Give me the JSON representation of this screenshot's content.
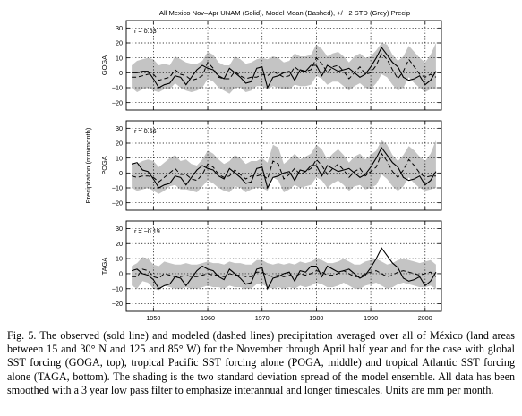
{
  "figure": {
    "title": "All Mexico Nov–Apr UNAM (Solid), Model Mean (Dashed), +/− 2 STD (Grey) Precip",
    "shared_ylabel": "Precipitation (mm/month)",
    "x_ticks": [
      1950,
      1960,
      1970,
      1980,
      1990,
      2000
    ],
    "colors": {
      "observed": "#000000",
      "model": "#000000",
      "spread": "#c4c4c4"
    }
  },
  "caption": {
    "text": "Fig. 5. The observed (sold line) and modeled (dashed lines) precipitation averaged over all of México (land areas between 15 and 30° N and 125 and 85° W) for the November through April half year and for the case with global SST forcing (GOGA, top), tropical Pacific SST forcing alone (POGA, middle) and tropical Atlantic SST forcing alone (TAGA, bottom). The shading is the two standard deviation spread of the model ensemble. All data has been smoothed with a 3 year low pass filter to emphasize interannual and longer timescales. Units are mm per month."
  },
  "chart_data": [
    {
      "type": "line",
      "panel": "GOGA",
      "ylabel": "GOGA",
      "annotation": "r = 0.63",
      "xlim": [
        1945,
        2003
      ],
      "ylim": [
        -25,
        35
      ],
      "y_ticks": [
        -20,
        -10,
        0,
        10,
        20,
        30
      ],
      "x": [
        1946,
        1947,
        1948,
        1949,
        1950,
        1951,
        1952,
        1953,
        1954,
        1955,
        1956,
        1957,
        1958,
        1959,
        1960,
        1961,
        1962,
        1963,
        1964,
        1965,
        1966,
        1967,
        1968,
        1969,
        1970,
        1971,
        1972,
        1973,
        1974,
        1975,
        1976,
        1977,
        1978,
        1979,
        1980,
        1981,
        1982,
        1983,
        1984,
        1985,
        1986,
        1987,
        1988,
        1989,
        1990,
        1991,
        1992,
        1993,
        1994,
        1995,
        1996,
        1997,
        1998,
        1999,
        2000,
        2001,
        2002
      ],
      "series": [
        {
          "name": "UNAM (Solid)",
          "values": [
            0,
            0,
            1,
            1,
            -4,
            -10,
            -8,
            -7,
            -2,
            -3,
            -8,
            -3,
            2,
            5,
            3,
            2,
            -2,
            -4,
            3,
            0,
            -3,
            -7,
            -6,
            3,
            4,
            -10,
            -3,
            -2,
            0,
            1,
            -5,
            2,
            1,
            5,
            5,
            -2,
            5,
            3,
            1,
            2,
            3,
            0,
            -3,
            -1,
            4,
            10,
            17,
            12,
            7,
            4,
            -3,
            -5,
            -4,
            -2,
            -8,
            -5,
            1
          ]
        },
        {
          "name": "Model Mean (Dashed)",
          "values": [
            -3,
            -3,
            -2,
            -1,
            -1,
            -5,
            -4,
            -3,
            2,
            -1,
            -2,
            -5,
            -4,
            -2,
            7,
            3,
            -3,
            -4,
            -4,
            1,
            -2,
            -4,
            -3,
            -3,
            -1,
            -2,
            1,
            -1,
            -3,
            -2,
            4,
            1,
            1,
            2,
            10,
            6,
            0,
            4,
            5,
            1,
            -4,
            0,
            4,
            -1,
            0,
            5,
            13,
            9,
            2,
            -4,
            1,
            9,
            4,
            -1,
            -3,
            -1,
            -3
          ]
        },
        {
          "name": "+/− 2 STD (Grey)",
          "lower": [
            -10,
            -13,
            -11,
            -10,
            -12,
            -13,
            -11,
            -11,
            -7,
            -10,
            -12,
            -13,
            -12,
            -10,
            -4,
            -6,
            -10,
            -12,
            -14,
            -10,
            -10,
            -13,
            -12,
            -9,
            -9,
            -11,
            -9,
            -10,
            -11,
            -11,
            -8,
            -9,
            -9,
            -8,
            -2,
            -4,
            -8,
            -6,
            -6,
            -9,
            -12,
            -9,
            -7,
            -10,
            -11,
            -7,
            -1,
            -3,
            -8,
            -12,
            -10,
            -3,
            -7,
            -10,
            -13,
            -11,
            -11
          ],
          "upper": [
            5,
            8,
            9,
            10,
            9,
            5,
            6,
            5,
            11,
            9,
            7,
            6,
            6,
            8,
            14,
            12,
            7,
            5,
            5,
            11,
            9,
            6,
            7,
            9,
            10,
            9,
            11,
            10,
            7,
            8,
            13,
            11,
            11,
            12,
            19,
            16,
            11,
            13,
            14,
            11,
            7,
            11,
            13,
            10,
            11,
            15,
            20,
            19,
            12,
            8,
            11,
            18,
            14,
            10,
            7,
            12,
            20
          ]
        }
      ]
    },
    {
      "type": "line",
      "panel": "POGA",
      "ylabel": "POGA",
      "annotation": "r = 0.56",
      "xlim": [
        1945,
        2003
      ],
      "ylim": [
        -25,
        35
      ],
      "y_ticks": [
        -20,
        -10,
        0,
        10,
        20,
        30
      ],
      "x": [
        1946,
        1947,
        1948,
        1949,
        1950,
        1951,
        1952,
        1953,
        1954,
        1955,
        1956,
        1957,
        1958,
        1959,
        1960,
        1961,
        1962,
        1963,
        1964,
        1965,
        1966,
        1967,
        1968,
        1969,
        1970,
        1971,
        1972,
        1973,
        1974,
        1975,
        1976,
        1977,
        1978,
        1979,
        1980,
        1981,
        1982,
        1983,
        1984,
        1985,
        1986,
        1987,
        1988,
        1989,
        1990,
        1991,
        1992,
        1993,
        1994,
        1995,
        1996,
        1997,
        1998,
        1999,
        2000,
        2001,
        2002
      ],
      "series": [
        {
          "name": "UNAM (Solid)",
          "values": [
            6,
            7,
            2,
            1,
            -4,
            -10,
            -8,
            -7,
            -2,
            -3,
            -8,
            -3,
            2,
            5,
            3,
            2,
            -2,
            -4,
            3,
            0,
            -3,
            -7,
            -6,
            3,
            4,
            -10,
            -3,
            -2,
            0,
            1,
            -5,
            2,
            1,
            5,
            5,
            -2,
            5,
            3,
            1,
            2,
            3,
            0,
            -3,
            -1,
            4,
            10,
            17,
            12,
            7,
            4,
            -3,
            -5,
            -4,
            -2,
            -8,
            -5,
            1
          ]
        },
        {
          "name": "Model Mean (Dashed)",
          "values": [
            -2,
            -3,
            -2,
            -2,
            -3,
            -6,
            -3,
            0,
            3,
            -1,
            -1,
            -4,
            -5,
            -1,
            6,
            4,
            -1,
            -3,
            -2,
            2,
            -1,
            -4,
            -2,
            -2,
            -1,
            -4,
            8,
            6,
            -4,
            -1,
            3,
            -1,
            1,
            3,
            9,
            5,
            -1,
            3,
            6,
            2,
            -3,
            1,
            3,
            -2,
            1,
            4,
            13,
            8,
            1,
            -3,
            2,
            9,
            5,
            0,
            -3,
            -2,
            -2
          ]
        },
        {
          "name": "+/− 2 STD (Grey)",
          "lower": [
            -10,
            -12,
            -11,
            -10,
            -12,
            -14,
            -12,
            -9,
            -8,
            -11,
            -11,
            -12,
            -13,
            -9,
            -5,
            -7,
            -10,
            -12,
            -13,
            -9,
            -10,
            -13,
            -11,
            -10,
            -10,
            -12,
            -3,
            -5,
            -13,
            -11,
            -8,
            -10,
            -9,
            -8,
            -3,
            -5,
            -10,
            -7,
            -5,
            -8,
            -12,
            -9,
            -8,
            -11,
            -10,
            -8,
            -1,
            -4,
            -9,
            -12,
            -9,
            -3,
            -7,
            -10,
            -12,
            -11,
            -10
          ],
          "upper": [
            7,
            6,
            8,
            9,
            8,
            4,
            7,
            10,
            12,
            8,
            9,
            6,
            5,
            9,
            15,
            13,
            9,
            6,
            8,
            12,
            10,
            6,
            8,
            8,
            10,
            7,
            19,
            17,
            6,
            9,
            13,
            9,
            11,
            13,
            19,
            16,
            9,
            13,
            16,
            12,
            7,
            11,
            13,
            9,
            12,
            15,
            22,
            19,
            12,
            8,
            12,
            18,
            15,
            11,
            8,
            13,
            22
          ]
        }
      ]
    },
    {
      "type": "line",
      "panel": "TAGA",
      "ylabel": "TAGA",
      "annotation": "r = −0.19",
      "xlim": [
        1945,
        2003
      ],
      "ylim": [
        -25,
        35
      ],
      "y_ticks": [
        -20,
        -10,
        0,
        10,
        20,
        30
      ],
      "x": [
        1946,
        1947,
        1948,
        1949,
        1950,
        1951,
        1952,
        1953,
        1954,
        1955,
        1956,
        1957,
        1958,
        1959,
        1960,
        1961,
        1962,
        1963,
        1964,
        1965,
        1966,
        1967,
        1968,
        1969,
        1970,
        1971,
        1972,
        1973,
        1974,
        1975,
        1976,
        1977,
        1978,
        1979,
        1980,
        1981,
        1982,
        1983,
        1984,
        1985,
        1986,
        1987,
        1988,
        1989,
        1990,
        1991,
        1992,
        1993,
        1994,
        1995,
        1996,
        1997,
        1998,
        1999,
        2000,
        2001,
        2002
      ],
      "series": [
        {
          "name": "UNAM (Solid)",
          "values": [
            2,
            3,
            0,
            -1,
            -4,
            -10,
            -8,
            -7,
            -2,
            -3,
            -8,
            -3,
            2,
            5,
            3,
            2,
            -2,
            -4,
            3,
            0,
            -3,
            -7,
            -6,
            3,
            4,
            -10,
            -3,
            -2,
            0,
            1,
            -5,
            2,
            1,
            5,
            5,
            -2,
            5,
            3,
            1,
            2,
            3,
            0,
            -3,
            -1,
            4,
            10,
            17,
            12,
            7,
            4,
            -3,
            -5,
            -4,
            -2,
            -8,
            -5,
            1
          ]
        },
        {
          "name": "Model Mean (Dashed)",
          "values": [
            -2,
            -2,
            3,
            2,
            -2,
            -3,
            0,
            -1,
            -2,
            -2,
            -1,
            -2,
            -2,
            -1,
            0,
            -1,
            -1,
            -2,
            0,
            -1,
            -1,
            -2,
            -2,
            1,
            1,
            -1,
            -2,
            -1,
            -2,
            -1,
            -2,
            0,
            -1,
            0,
            2,
            1,
            -1,
            -1,
            0,
            2,
            0,
            -2,
            -2,
            0,
            1,
            2,
            0,
            -2,
            -1,
            1,
            2,
            1,
            0,
            -1,
            0,
            1,
            -2
          ]
        },
        {
          "name": "+/− 2 STD (Grey)",
          "lower": [
            -8,
            -10,
            -5,
            -6,
            -10,
            -11,
            -8,
            -9,
            -10,
            -10,
            -9,
            -10,
            -10,
            -9,
            -8,
            -9,
            -9,
            -10,
            -8,
            -9,
            -9,
            -10,
            -10,
            -7,
            -7,
            -9,
            -10,
            -9,
            -10,
            -9,
            -10,
            -8,
            -9,
            -8,
            -6,
            -7,
            -9,
            -9,
            -8,
            -6,
            -8,
            -10,
            -10,
            -8,
            -7,
            -6,
            -8,
            -10,
            -9,
            -7,
            -6,
            -7,
            -8,
            -9,
            -9,
            -8,
            -10
          ],
          "upper": [
            5,
            7,
            11,
            10,
            6,
            5,
            8,
            7,
            6,
            6,
            7,
            6,
            6,
            7,
            8,
            7,
            7,
            6,
            8,
            7,
            7,
            6,
            6,
            9,
            9,
            7,
            6,
            7,
            6,
            7,
            6,
            8,
            7,
            8,
            10,
            9,
            7,
            7,
            8,
            10,
            8,
            6,
            6,
            8,
            9,
            10,
            8,
            6,
            7,
            9,
            10,
            9,
            8,
            7,
            8,
            9,
            6
          ]
        }
      ]
    }
  ]
}
